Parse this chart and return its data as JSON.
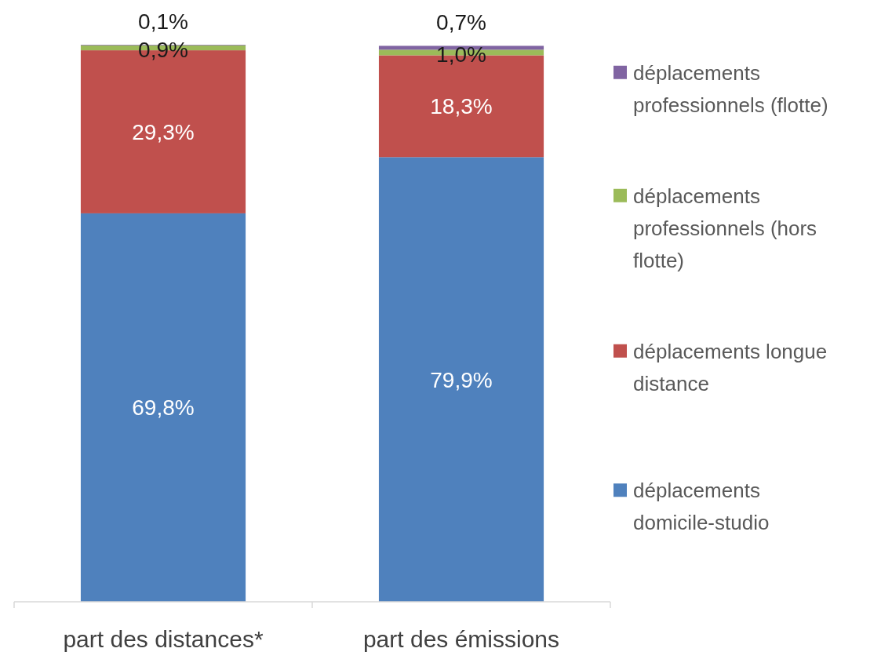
{
  "chart_data": {
    "type": "bar",
    "stacked": true,
    "legend": "right",
    "categories": [
      "part des distances*",
      "part des émissions"
    ],
    "series": [
      {
        "name": "déplacements domicile-studio",
        "color": "#4f81bd",
        "values": [
          69.8,
          79.9
        ],
        "value_labels": [
          "69,8%",
          "79,9%"
        ]
      },
      {
        "name": "déplacements longue distance",
        "color": "#c0504d",
        "values": [
          29.3,
          18.3
        ],
        "value_labels": [
          "29,3%",
          "18,3%"
        ]
      },
      {
        "name": "déplacements professionnels (hors flotte)",
        "color": "#9bbb59",
        "values": [
          0.9,
          1.0
        ],
        "value_labels": [
          "0,9%",
          "1,0%"
        ]
      },
      {
        "name": "déplacements professionnels (flotte)",
        "color": "#8064a2",
        "values": [
          0.1,
          0.7
        ],
        "value_labels": [
          "0,1%",
          "0,7%"
        ]
      }
    ]
  }
}
